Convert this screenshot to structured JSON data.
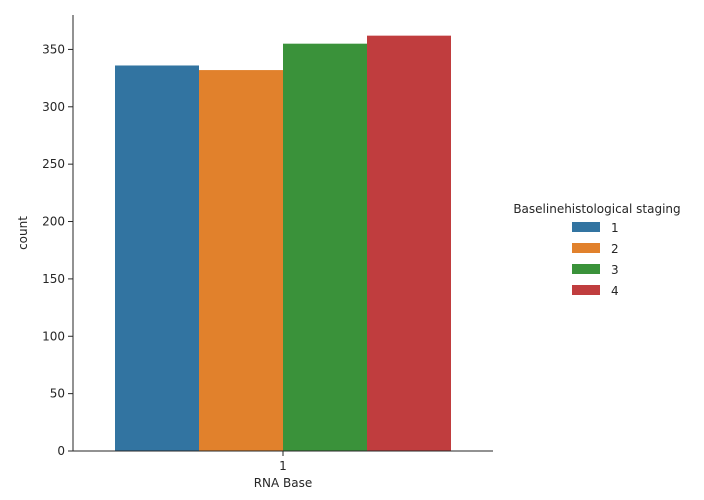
{
  "chart_data": {
    "type": "bar",
    "categories": [
      "1"
    ],
    "xlabel": "RNA Base",
    "ylabel": "count",
    "ylim": [
      0,
      380
    ],
    "yticks": [
      0,
      50,
      100,
      150,
      200,
      250,
      300,
      350
    ],
    "grid": false,
    "legend": {
      "title": "Baselinehistological staging",
      "placement": "right"
    },
    "series": [
      {
        "name": "1",
        "values": [
          336
        ],
        "color": "#3274a1"
      },
      {
        "name": "2",
        "values": [
          332
        ],
        "color": "#e1812c"
      },
      {
        "name": "3",
        "values": [
          355
        ],
        "color": "#3a923a"
      },
      {
        "name": "4",
        "values": [
          362
        ],
        "color": "#c03d3e"
      }
    ]
  }
}
